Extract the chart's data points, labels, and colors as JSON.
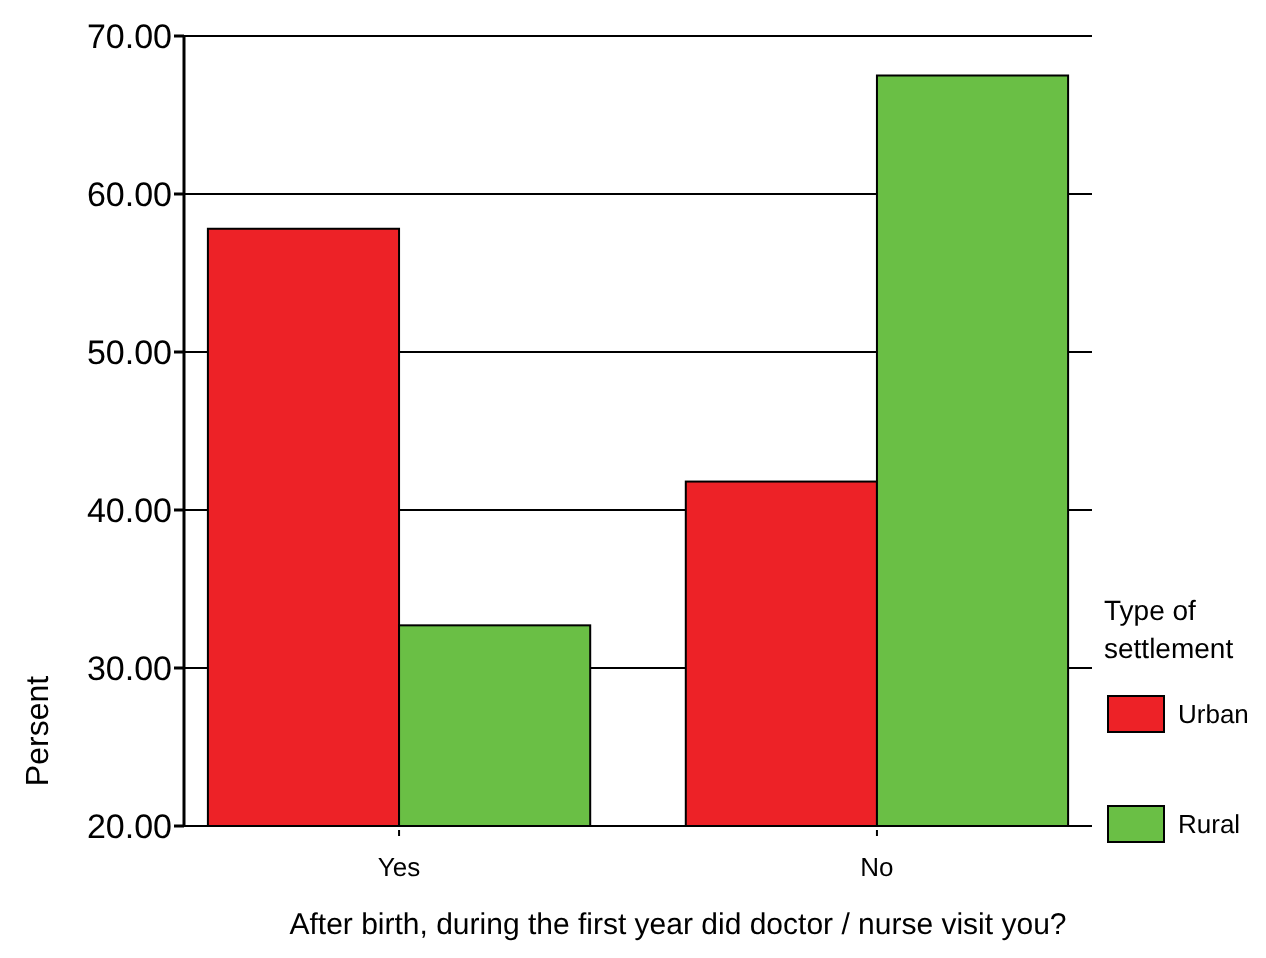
{
  "chart_data": {
    "type": "bar",
    "xlabel": "After birth, during the first year did doctor / nurse visit you?",
    "ylabel": "Persent",
    "legend_title": "Type of settlement",
    "categories": [
      "Yes",
      "No"
    ],
    "series": [
      {
        "name": "Urban",
        "color": "#ed2227",
        "values": [
          57.8,
          41.8
        ]
      },
      {
        "name": "Rural",
        "color": "#6abf45",
        "values": [
          32.7,
          67.5
        ]
      }
    ],
    "ylim": [
      20,
      70
    ],
    "yticks": [
      {
        "value": 20,
        "label": "20.00"
      },
      {
        "value": 30,
        "label": "30.00"
      },
      {
        "value": 40,
        "label": "40.00"
      },
      {
        "value": 50,
        "label": "50.00"
      },
      {
        "value": 60,
        "label": "60.00"
      },
      {
        "value": 70,
        "label": "70.00"
      }
    ],
    "grid": "y",
    "legend": "right"
  }
}
